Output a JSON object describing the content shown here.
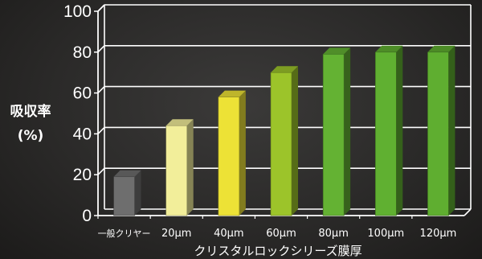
{
  "chart_data": {
    "type": "bar",
    "title": "",
    "ylabel": "吸収率",
    "ylabel_unit": "(%)",
    "xlabel": "クリスタルロックシリーズ膜厚",
    "ylim": [
      0,
      100
    ],
    "yticks": [
      "0",
      "20",
      "40",
      "60",
      "80",
      "100"
    ],
    "grid": true,
    "categories": [
      "一般クリヤー",
      "20μm",
      "40μm",
      "60μm",
      "80μm",
      "100μm",
      "120μm"
    ],
    "values": [
      19,
      44,
      58,
      70,
      79,
      80,
      80
    ],
    "colors": [
      "#6e6e6e",
      "#f2ee9a",
      "#ede236",
      "#9cc42a",
      "#64b233",
      "#60b031",
      "#5fae30"
    ]
  }
}
